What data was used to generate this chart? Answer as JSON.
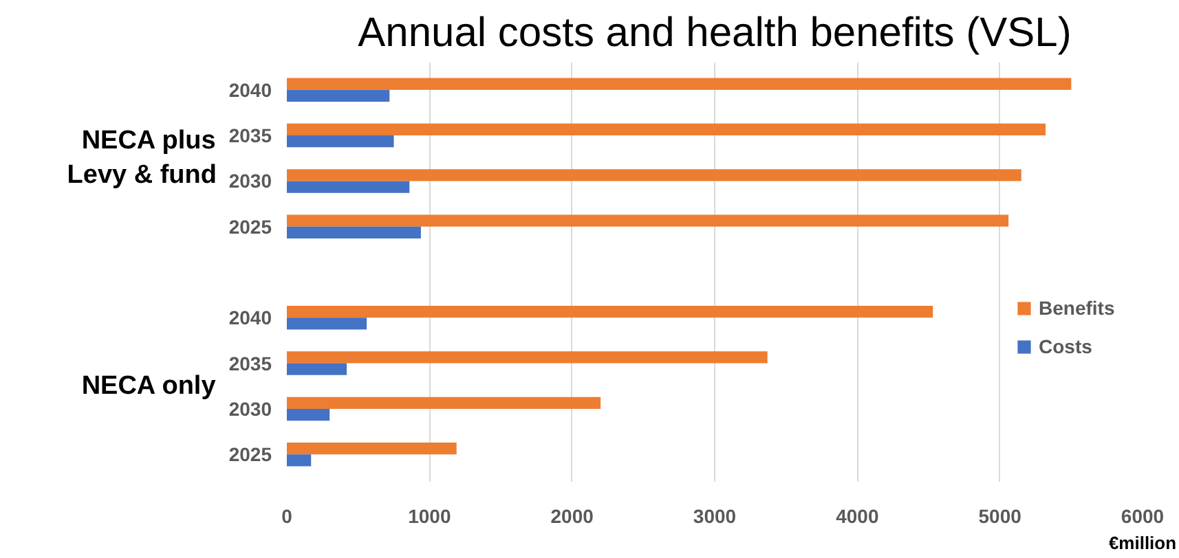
{
  "chart_data": {
    "type": "bar",
    "orientation": "horizontal",
    "title": "Annual costs and health benefits (VSL)",
    "xlabel": "€million",
    "categories": [
      "2040",
      "2035",
      "2030",
      "2025",
      null,
      "2040",
      "2035",
      "2030",
      "2025"
    ],
    "series": [
      {
        "name": "Benefits",
        "color": "#ed7d31",
        "values": [
          5500,
          5320,
          5150,
          5060,
          null,
          4530,
          3370,
          2200,
          1190
        ]
      },
      {
        "name": "Costs",
        "color": "#4472c4",
        "values": [
          720,
          750,
          860,
          940,
          null,
          560,
          420,
          300,
          170
        ]
      }
    ],
    "annotations": [
      "NECA plus\nLevy & fund",
      "NECA only"
    ],
    "xlim": [
      0,
      6000
    ],
    "xticks": [
      0,
      1000,
      2000,
      3000,
      4000,
      5000,
      6000
    ],
    "grid": "x",
    "legend": "right"
  }
}
